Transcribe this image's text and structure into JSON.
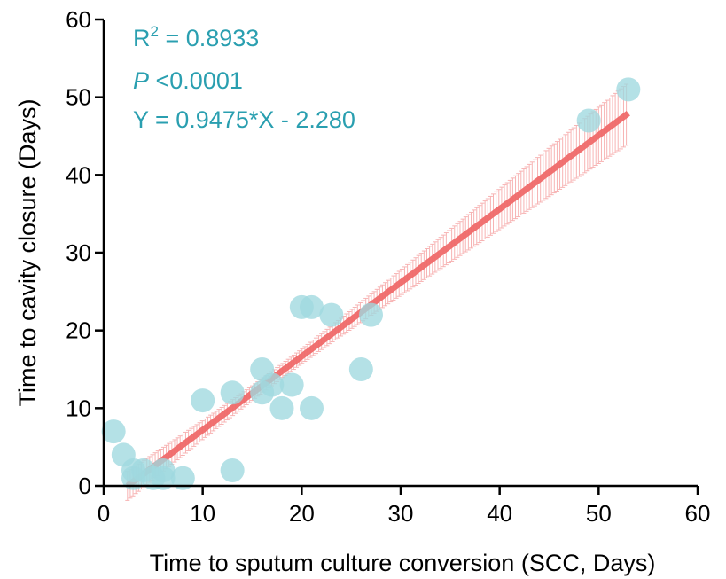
{
  "chart_data": {
    "type": "scatter",
    "xlabel": "Time to sputum culture conversion (SCC, Days)",
    "ylabel": "Time to cavity closure (Days)",
    "xlim": [
      0,
      60
    ],
    "ylim": [
      0,
      60
    ],
    "x_ticks": [
      "0",
      "10",
      "20",
      "30",
      "40",
      "50",
      "60"
    ],
    "y_ticks": [
      "0",
      "10",
      "20",
      "30",
      "40",
      "50",
      "60"
    ],
    "grid": false,
    "colors": {
      "points": "#9fd8df",
      "fit_line": "#f06a6a",
      "confidence_band": "#f7b3b3",
      "annotation": "#2a9fb0",
      "axis": "#000000"
    },
    "annotations": {
      "r2_prefix": "R",
      "r2_sup": "2",
      "r2_value": " = 0.8933",
      "p_label": "P",
      "p_value": " <0.0001",
      "equation": "Y = 0.9475*X - 2.280"
    },
    "regression": {
      "slope": 0.9475,
      "intercept": -2.28,
      "x_range": [
        2.4,
        53
      ]
    },
    "points": [
      {
        "x": 1,
        "y": 7
      },
      {
        "x": 2,
        "y": 4
      },
      {
        "x": 3,
        "y": 2
      },
      {
        "x": 3,
        "y": 1
      },
      {
        "x": 4,
        "y": 2
      },
      {
        "x": 5,
        "y": 1
      },
      {
        "x": 6,
        "y": 1
      },
      {
        "x": 6,
        "y": 2
      },
      {
        "x": 8,
        "y": 1
      },
      {
        "x": 10,
        "y": 11
      },
      {
        "x": 13,
        "y": 12
      },
      {
        "x": 13,
        "y": 2
      },
      {
        "x": 16,
        "y": 15
      },
      {
        "x": 16,
        "y": 12
      },
      {
        "x": 17,
        "y": 13
      },
      {
        "x": 18,
        "y": 10
      },
      {
        "x": 19,
        "y": 13
      },
      {
        "x": 20,
        "y": 23
      },
      {
        "x": 21,
        "y": 23
      },
      {
        "x": 21,
        "y": 10
      },
      {
        "x": 23,
        "y": 22
      },
      {
        "x": 26,
        "y": 15
      },
      {
        "x": 27,
        "y": 22
      },
      {
        "x": 49,
        "y": 47
      },
      {
        "x": 53,
        "y": 51
      }
    ]
  }
}
